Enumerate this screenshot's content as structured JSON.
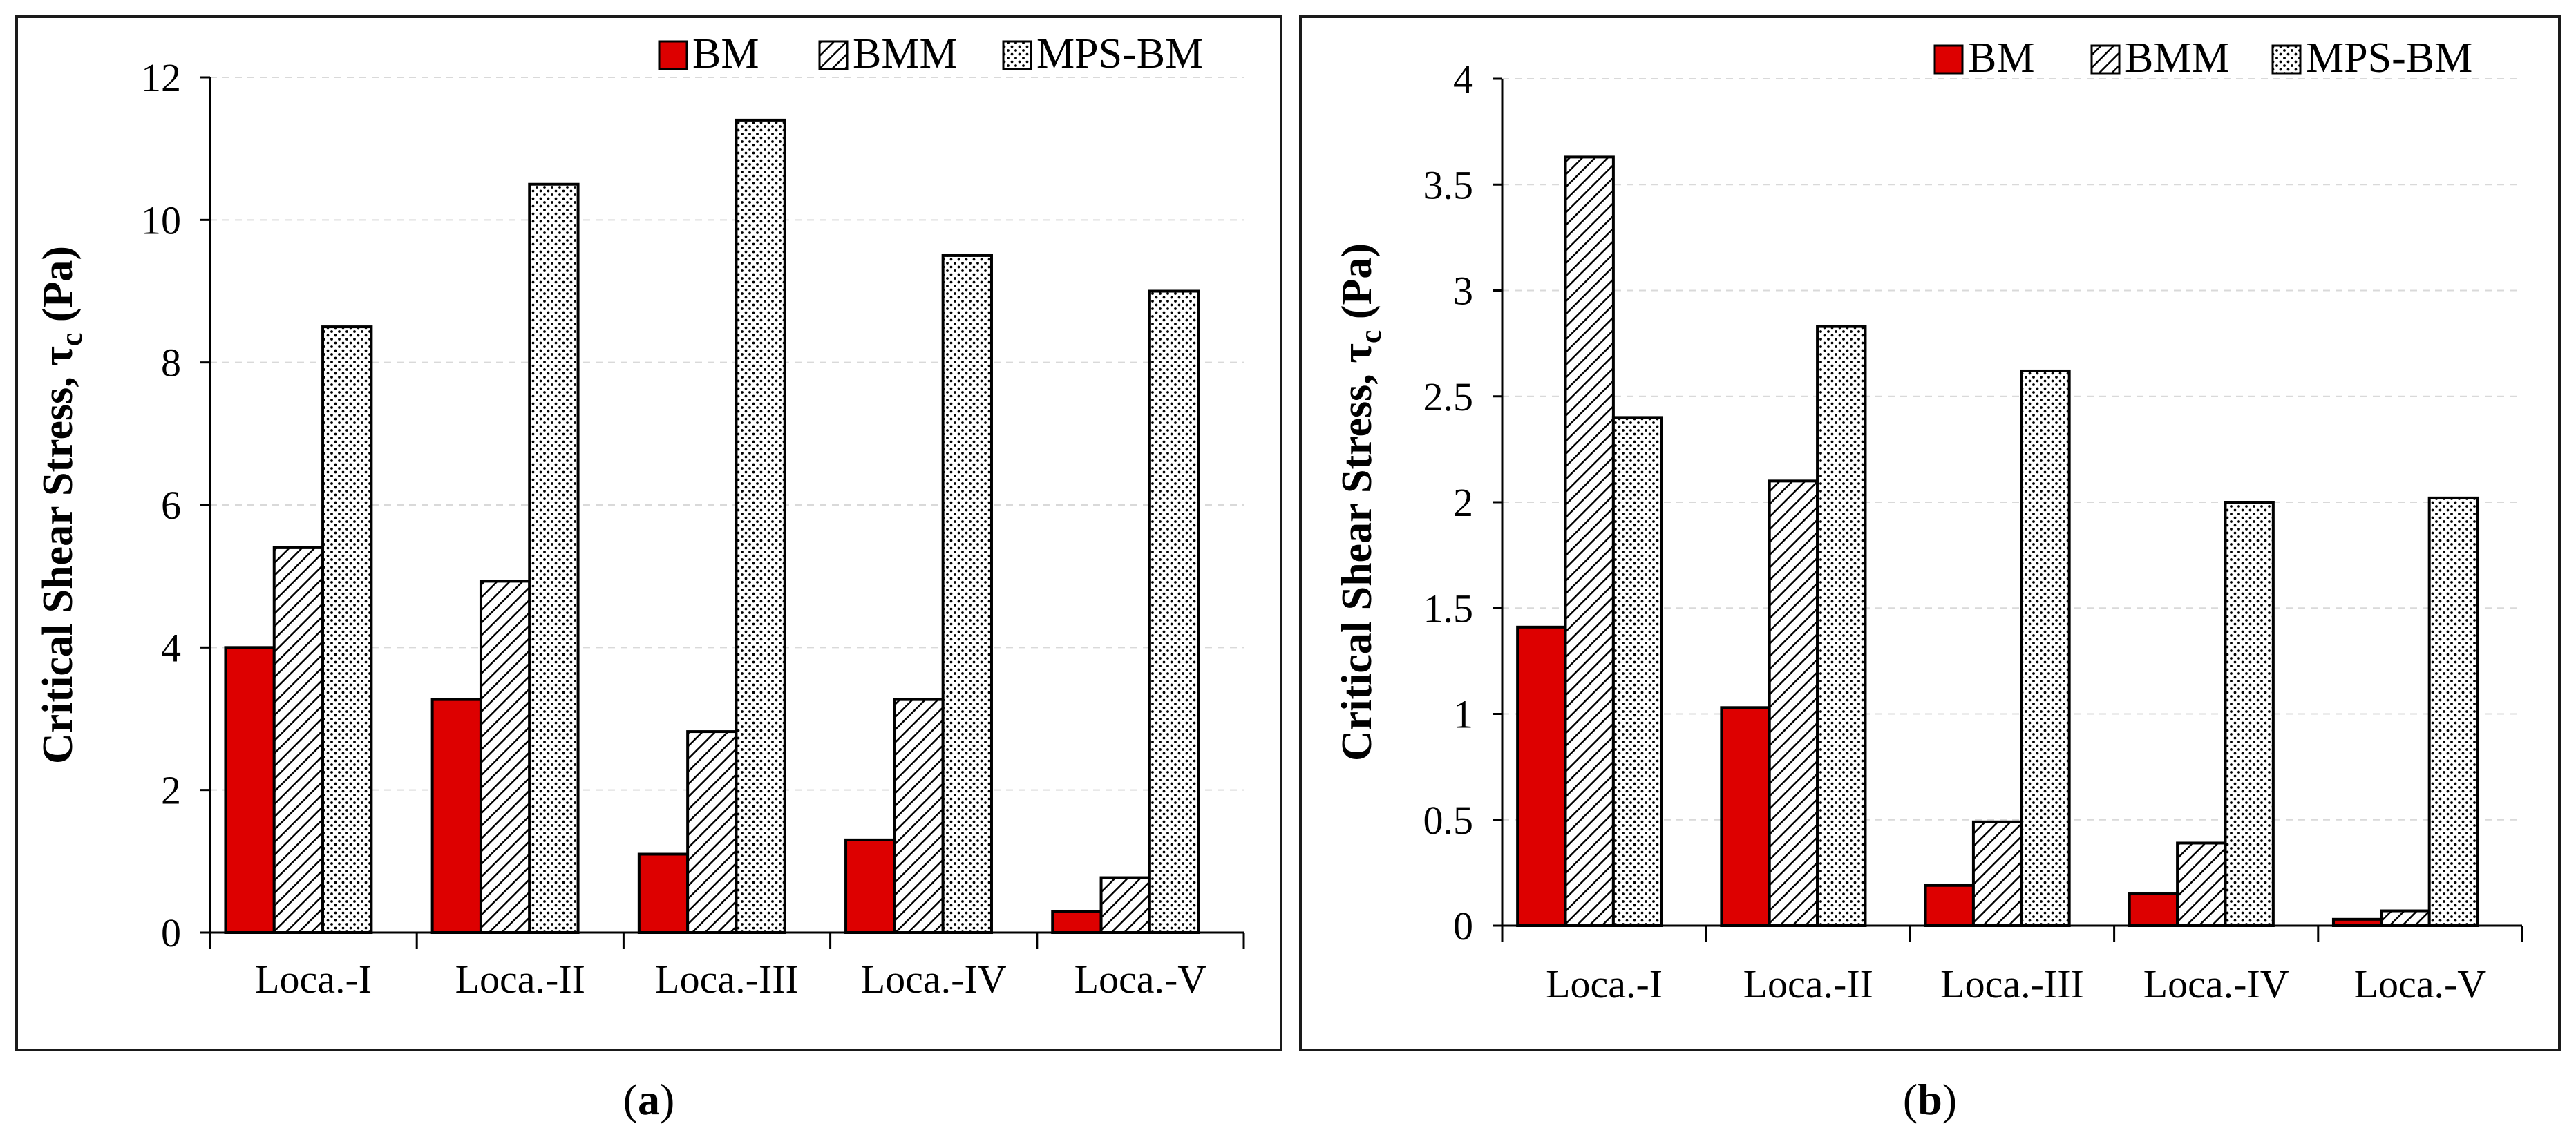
{
  "chart_data": [
    {
      "type": "bar",
      "panel": "a",
      "caption_letter": "a",
      "categories": [
        "Loca.-I",
        "Loca.-II",
        "Loca.-III",
        "Loca.-IV",
        "Loca.-V"
      ],
      "series": [
        {
          "name": "BM",
          "values": [
            4.0,
            3.27,
            1.1,
            1.3,
            0.3
          ]
        },
        {
          "name": "BMM",
          "values": [
            5.4,
            4.93,
            2.82,
            3.27,
            0.77
          ]
        },
        {
          "name": "MPS-BM",
          "values": [
            8.5,
            10.5,
            11.4,
            9.5,
            9.0
          ]
        }
      ],
      "ylabel": "Critical Shear Stress, τ",
      "ylabel_sub": "c",
      "ylabel_unit": "(Pa)",
      "ylim": [
        0,
        12
      ],
      "yticks": [
        "0",
        "2",
        "4",
        "6",
        "8",
        "10",
        "12"
      ],
      "grid": true,
      "legend": "top-right"
    },
    {
      "type": "bar",
      "panel": "b",
      "caption_letter": "b",
      "categories": [
        "Loca.-I",
        "Loca.-II",
        "Loca.-III",
        "Loca.-IV",
        "Loca.-V"
      ],
      "series": [
        {
          "name": "BM",
          "values": [
            1.41,
            1.03,
            0.19,
            0.15,
            0.03
          ]
        },
        {
          "name": "BMM",
          "values": [
            3.63,
            2.1,
            0.49,
            0.39,
            0.07
          ]
        },
        {
          "name": "MPS-BM",
          "values": [
            2.4,
            2.83,
            2.62,
            2.0,
            2.02
          ]
        }
      ],
      "ylabel": "Critical Shear Stress, τ",
      "ylabel_sub": "c",
      "ylabel_unit": "(Pa)",
      "ylim": [
        0,
        4
      ],
      "yticks": [
        "0",
        "0.5",
        "1",
        "1.5",
        "2",
        "2.5",
        "3",
        "3.5",
        "4"
      ],
      "grid": true,
      "legend": "top-right"
    }
  ],
  "colors": {
    "BM": "#dd0000",
    "frame": "#1a1a1a",
    "grid": "#d9d9d9"
  }
}
